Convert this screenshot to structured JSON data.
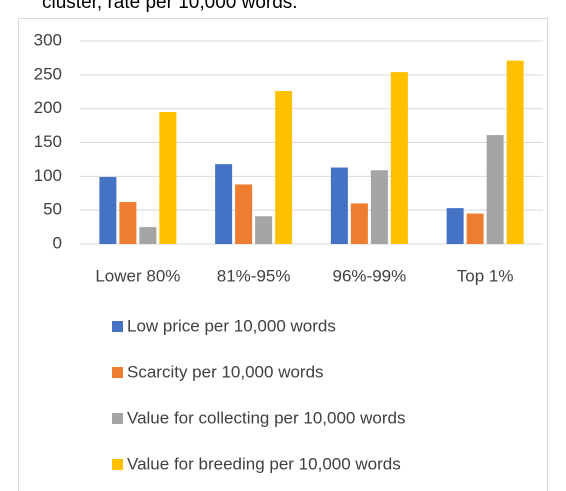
{
  "chart_data": {
    "type": "bar",
    "title": "cluster, rate per 10,000 words.",
    "categories": [
      "Lower 80%",
      "81%-95%",
      "96%-99%",
      "Top 1%"
    ],
    "series": [
      {
        "name": "Low price per 10,000 words",
        "color": "#4472c4",
        "values": [
          99,
          118,
          113,
          53
        ]
      },
      {
        "name": "Scarcity per 10,000 words",
        "color": "#ed7d31",
        "values": [
          62,
          88,
          60,
          45
        ]
      },
      {
        "name": "Value for collecting per 10,000 words",
        "color": "#a5a5a5",
        "values": [
          25,
          41,
          109,
          161
        ]
      },
      {
        "name": "Value for breeding per 10,000 words",
        "color": "#ffc000",
        "values": [
          195,
          226,
          254,
          271
        ]
      }
    ],
    "ylim": [
      0,
      300
    ],
    "yticks": [
      0,
      50,
      100,
      150,
      200,
      250,
      300
    ],
    "grid": true,
    "legend": "bottom"
  }
}
